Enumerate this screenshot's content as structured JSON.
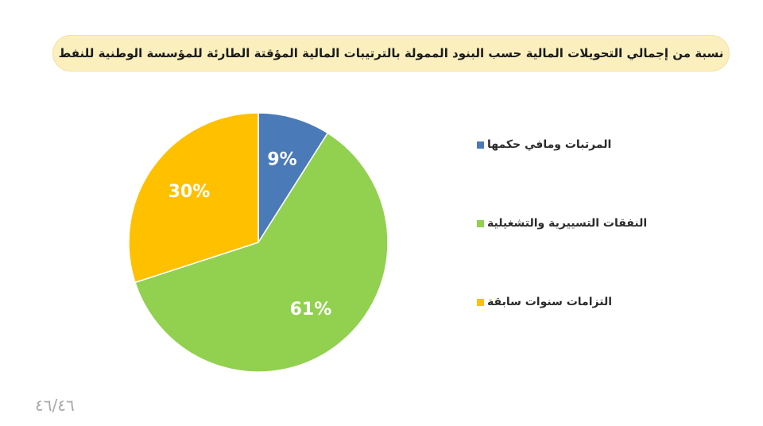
{
  "title": "نسبة من إجمالي التحويلات المالية حسب البنود الممولة بالترتيبات المالية المؤقتة الطارئة للمؤسسة الوطنية للنفط",
  "page_number": "٤٦/٤٦",
  "colors": {
    "salaries": "#4a7ab8",
    "operating": "#92d050",
    "previous_years": "#ffc000",
    "label_text": "#ffffff",
    "banner_bg": "#fbf0bd"
  },
  "chart_data": {
    "type": "pie",
    "title": "نسبة من إجمالي التحويلات المالية حسب البنود الممولة بالترتيبات المالية المؤقتة الطارئة للمؤسسة الوطنية للنفط",
    "start_angle_deg": 0,
    "direction": "clockwise",
    "legend_position": "right",
    "slices": [
      {
        "label": "المرتبات ومافي حكمها",
        "value": 9,
        "display": "9%",
        "color": "#4a7ab8"
      },
      {
        "label": "النفقات التسييرية والتشغيلية",
        "value": 61,
        "display": "61%",
        "color": "#92d050"
      },
      {
        "label": "التزامات سنوات سابقة",
        "value": 30,
        "display": "30%",
        "color": "#ffc000"
      }
    ]
  }
}
